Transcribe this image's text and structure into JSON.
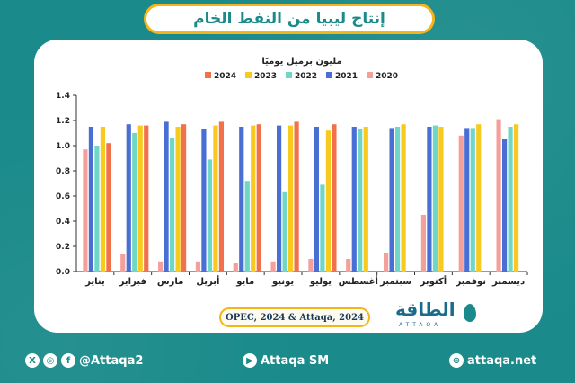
{
  "title": "إنتاج ليبيا من النفط الخام",
  "source": "OPEC, 2024 & Attaqa, 2024",
  "logo": {
    "text": "الطاقة",
    "sub": "ATTAQA"
  },
  "footer": {
    "social_handle": "@Attaqa2",
    "youtube_handle": "Attaqa SM",
    "website": "attaqa.net"
  },
  "icons": [
    "x-icon",
    "instagram-icon",
    "facebook-icon",
    "youtube-icon",
    "globe-icon"
  ],
  "colors": {
    "y2020": "#f4a09a",
    "y2021": "#4a6fd4",
    "y2022": "#6fd6c8",
    "y2023": "#f8c91e",
    "y2024": "#f2704a",
    "teal": "#1a8a8a",
    "gold": "#f4b41a"
  },
  "chart_data": {
    "type": "bar",
    "title": "مليون برميل يوميًا",
    "categories": [
      "يناير",
      "فبراير",
      "مارس",
      "أبريل",
      "مايو",
      "يونيو",
      "يوليو",
      "أغسطس",
      "سبتمبر",
      "أكتوبر",
      "نوفمبر",
      "ديسمبر"
    ],
    "series": [
      {
        "name": "2020",
        "values": [
          0.97,
          0.14,
          0.08,
          0.08,
          0.07,
          0.08,
          0.1,
          0.1,
          0.15,
          0.45,
          1.08,
          1.21
        ]
      },
      {
        "name": "2021",
        "values": [
          1.15,
          1.17,
          1.19,
          1.13,
          1.15,
          1.16,
          1.15,
          1.15,
          1.14,
          1.15,
          1.14,
          1.05
        ]
      },
      {
        "name": "2022",
        "values": [
          1.0,
          1.1,
          1.06,
          0.89,
          0.72,
          0.63,
          0.69,
          1.13,
          1.15,
          1.16,
          1.14,
          1.15
        ]
      },
      {
        "name": "2023",
        "values": [
          1.15,
          1.16,
          1.15,
          1.16,
          1.16,
          1.16,
          1.12,
          1.15,
          1.17,
          1.15,
          1.17,
          1.17
        ]
      },
      {
        "name": "2024",
        "values": [
          1.02,
          1.16,
          1.17,
          1.19,
          1.17,
          1.19,
          1.17,
          null,
          null,
          null,
          null,
          null
        ]
      }
    ],
    "ylim": [
      0,
      1.4
    ],
    "yticks": [
      "0.0",
      "0.2",
      "0.4",
      "0.6",
      "0.8",
      "1.0",
      "1.2",
      "1.4"
    ],
    "legend": [
      "2024",
      "2023",
      "2022",
      "2021",
      "2020"
    ],
    "legend_position": "top",
    "grid": false
  }
}
